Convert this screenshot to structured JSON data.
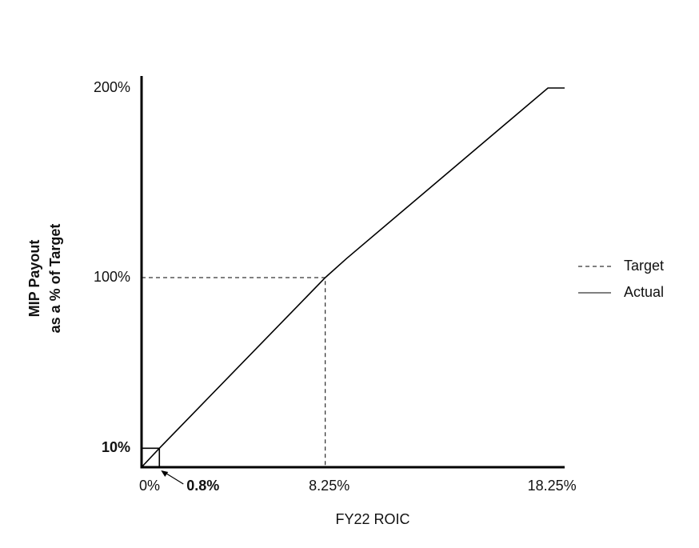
{
  "chart_data": {
    "type": "line",
    "xlabel": "FY22 ROIC",
    "ylabel": [
      "MIP Payout",
      "as a % of Target"
    ],
    "xlim": [
      0,
      19
    ],
    "ylim": [
      0,
      200
    ],
    "xticks": [
      {
        "value": 0,
        "label": "0%"
      },
      {
        "value": 0.8,
        "label": "0.8%",
        "bold": true
      },
      {
        "value": 8.25,
        "label": "8.25%"
      },
      {
        "value": 18.25,
        "label": "18.25%"
      }
    ],
    "yticks": [
      {
        "value": 10,
        "label": "10%",
        "bold": true
      },
      {
        "value": 100,
        "label": "100%"
      },
      {
        "value": 200,
        "label": "200%"
      }
    ],
    "grid": false,
    "legend": "right",
    "series": [
      {
        "name": "Target",
        "color": "#000000",
        "dash": true,
        "x": [
          0,
          8.25,
          8.25
        ],
        "values": [
          100,
          100,
          0
        ]
      },
      {
        "name": "Actual",
        "color": "#000000",
        "dash": false,
        "x": [
          0,
          0.8,
          8.25,
          9.2,
          18.25,
          19
        ],
        "values": [
          0,
          10,
          100,
          110,
          200,
          200
        ]
      }
    ]
  }
}
